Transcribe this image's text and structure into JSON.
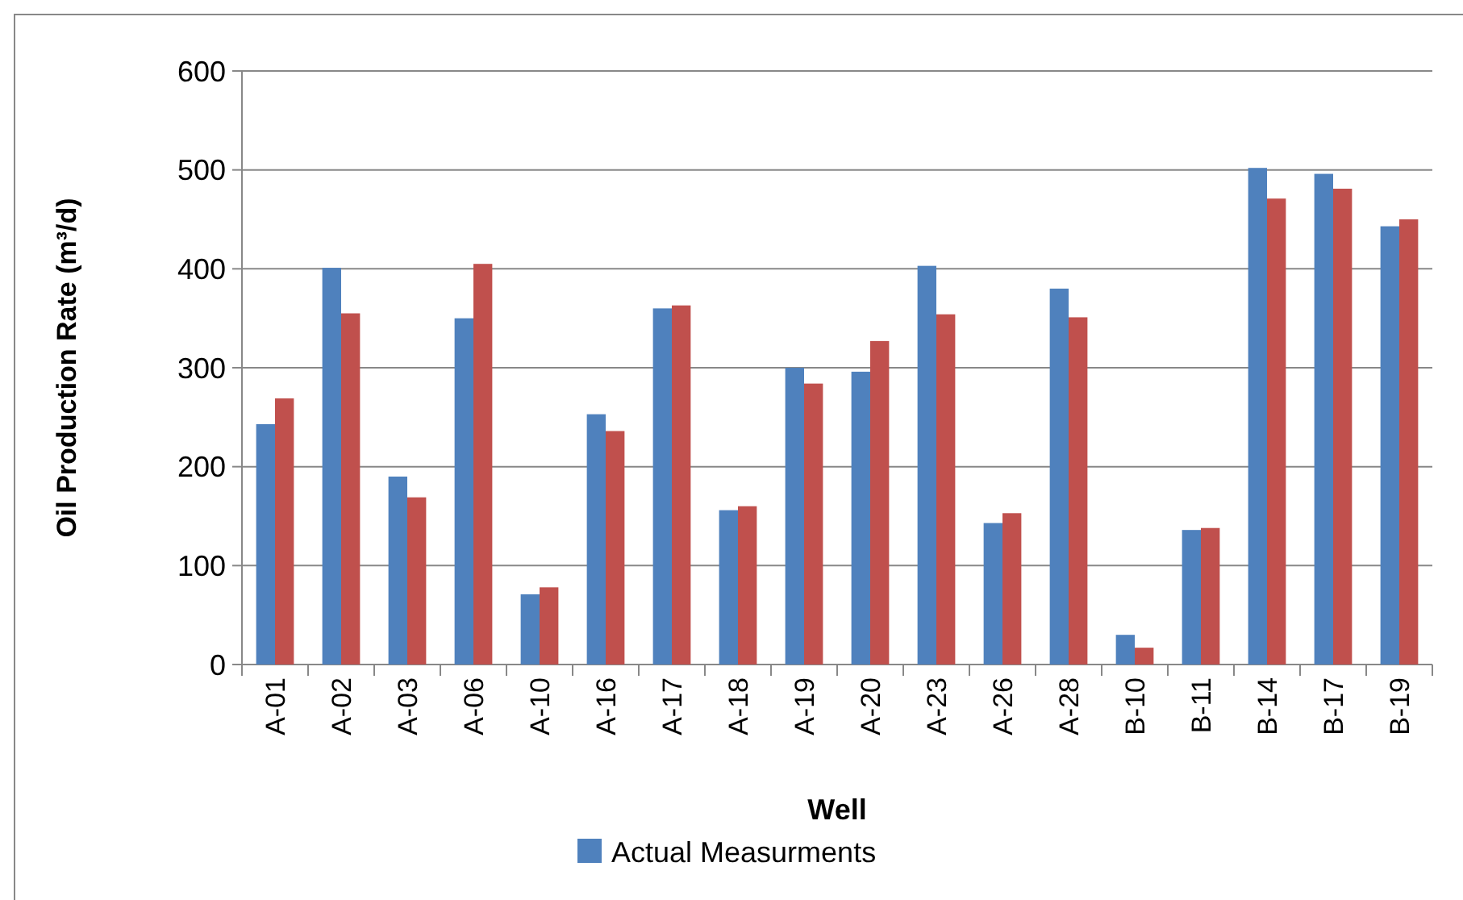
{
  "chart_data": {
    "type": "bar",
    "xlabel": "Well",
    "ylabel": "Oil Production Rate (m³/d)",
    "categories": [
      "A-01",
      "A-02",
      "A-03",
      "A-06",
      "A-10",
      "A-16",
      "A-17",
      "A-18",
      "A-19",
      "A-20",
      "A-23",
      "A-26",
      "A-28",
      "B-10",
      "B-11",
      "B-14",
      "B-17",
      "B-19"
    ],
    "series": [
      {
        "name": "Actual Measurments",
        "color": "#4f81bd",
        "values": [
          243,
          401,
          190,
          350,
          71,
          253,
          360,
          156,
          300,
          296,
          403,
          143,
          380,
          30,
          136,
          502,
          496,
          443
        ]
      },
      {
        "color": "#c0504d",
        "values": [
          269,
          355,
          169,
          405,
          78,
          236,
          363,
          160,
          284,
          327,
          354,
          153,
          351,
          17,
          138,
          471,
          481,
          450
        ]
      }
    ],
    "ylim": [
      0,
      600
    ],
    "yticks": [
      0,
      100,
      200,
      300,
      400,
      500,
      600
    ],
    "grid": "y",
    "legend": "bottom"
  }
}
